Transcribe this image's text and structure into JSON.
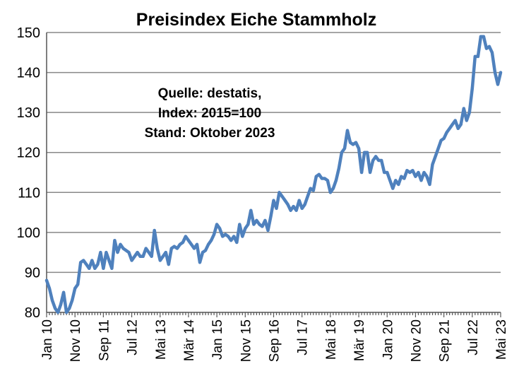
{
  "chart_data": {
    "type": "line",
    "title": "Preisindex Eiche Stammholz",
    "annotation": [
      "Quelle: destatis,",
      "Index: 2015=100",
      "Stand: Oktober 2023"
    ],
    "xlabel": "",
    "ylabel": "",
    "ylim": [
      80,
      150
    ],
    "yticks": [
      80,
      90,
      100,
      110,
      120,
      130,
      140,
      150
    ],
    "grid": true,
    "x_tick_labels": [
      "Jan 10",
      "Nov 10",
      "Sep 11",
      "Jul 12",
      "Mai 13",
      "Mär 14",
      "Jan 15",
      "Nov 15",
      "Sep 16",
      "Jul 17",
      "Mai 18",
      "Mär 19",
      "Jan 20",
      "Nov 20",
      "Sep 21",
      "Jul 22",
      "Mai 23"
    ],
    "line_color": "#4F81BD",
    "series": [
      {
        "start": "Jan 10",
        "frequency": "monthly",
        "values": [
          88,
          86,
          83,
          81,
          80,
          82,
          85,
          80,
          81,
          83,
          86,
          87,
          92.5,
          93,
          92,
          91,
          93,
          91,
          92,
          95,
          91,
          95,
          93,
          91,
          98,
          95,
          97,
          96,
          95.5,
          95,
          93,
          94,
          95,
          94,
          94,
          96,
          95,
          94,
          100.5,
          96,
          93,
          94,
          95,
          92,
          96,
          96.5,
          96,
          97,
          97.5,
          99,
          98,
          97,
          96,
          97,
          92.5,
          95,
          95.5,
          97,
          98,
          99.5,
          102,
          101,
          99,
          99.5,
          99,
          98,
          99,
          97.5,
          102,
          99,
          101,
          102,
          105.5,
          102,
          103,
          102,
          101.5,
          103,
          100.5,
          104,
          108,
          106,
          110,
          109,
          108,
          107,
          105.5,
          106.5,
          105.5,
          108,
          106,
          107,
          109,
          111,
          110.5,
          114,
          114.5,
          113.5,
          113.5,
          113,
          110,
          111,
          113,
          116,
          120,
          121,
          125.5,
          122.5,
          122,
          122.5,
          121,
          115,
          120,
          120,
          115,
          118,
          119,
          118,
          118,
          115,
          115,
          113,
          111,
          113,
          112,
          114,
          113.5,
          115.5,
          115,
          115.5,
          114,
          115,
          113,
          115,
          114,
          112,
          117,
          119,
          121,
          123,
          123.5,
          125,
          126,
          127,
          128,
          126,
          127,
          131,
          128,
          130,
          136,
          144,
          144,
          149,
          149,
          146,
          146.5,
          145,
          140,
          137,
          140
        ]
      }
    ]
  }
}
